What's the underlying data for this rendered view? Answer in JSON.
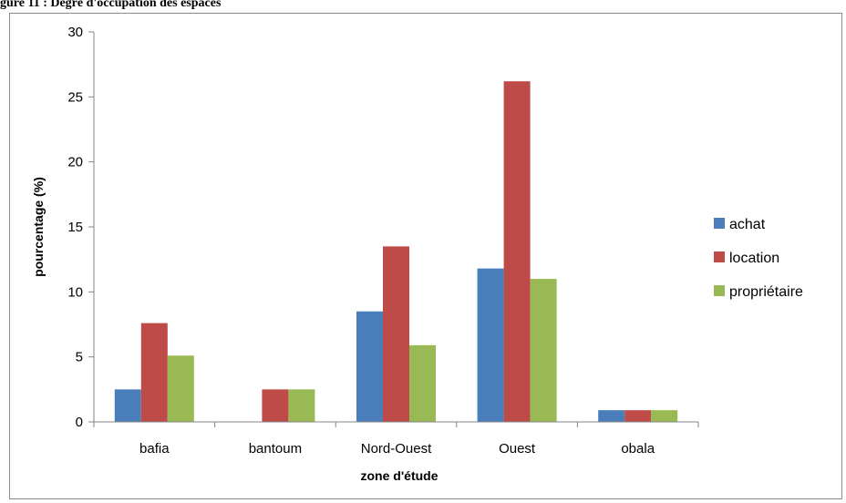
{
  "caption": "gure 11 : Degré d'occupation des espaces",
  "chart_data": {
    "type": "bar",
    "categories": [
      "bafia",
      "bantoum",
      "Nord-Ouest",
      "Ouest",
      "obala"
    ],
    "series": [
      {
        "name": "achat",
        "color": "#4a7ebb",
        "values": [
          2.5,
          0,
          8.5,
          11.8,
          0.9
        ]
      },
      {
        "name": "location",
        "color": "#be4b48",
        "values": [
          7.6,
          2.5,
          13.5,
          26.2,
          0.9
        ]
      },
      {
        "name": "propriétaire",
        "color": "#98b954",
        "values": [
          5.1,
          2.5,
          5.9,
          11.0,
          0.9
        ]
      }
    ],
    "xlabel": "zone d'étude",
    "ylabel": "pourcentage (%)",
    "ylim": [
      0,
      30
    ],
    "yticks": [
      0,
      5,
      10,
      15,
      20,
      25,
      30
    ],
    "legend_position": "right",
    "grid": false
  }
}
